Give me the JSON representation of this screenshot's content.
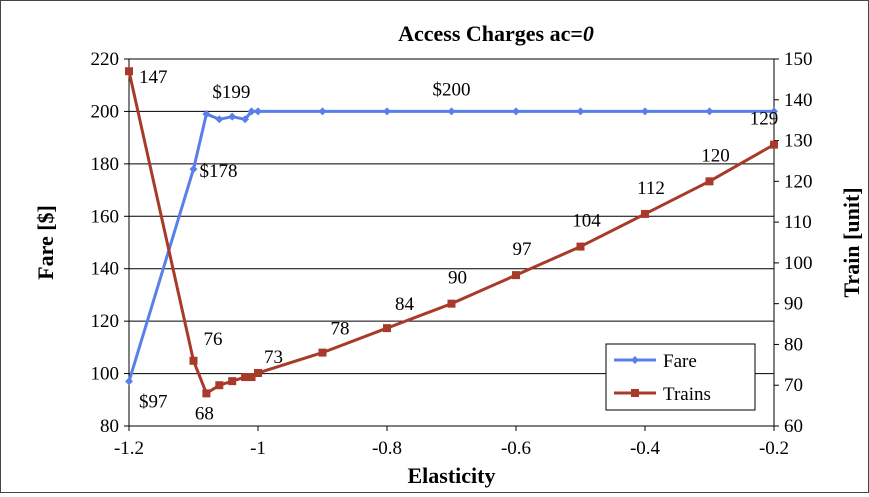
{
  "chart_data": {
    "type": "line",
    "title": "Access Charges ac=",
    "title_italic": "0",
    "xlabel": "Elasticity",
    "ylabel": "Fare [$]",
    "y2label": "Train [unit]",
    "xlim": [
      -1.2,
      -0.2
    ],
    "ylim": [
      80,
      220
    ],
    "y2lim": [
      60,
      150
    ],
    "x_ticks": [
      -1.2,
      -1,
      -0.8,
      -0.6,
      -0.4,
      -0.2
    ],
    "x_tick_labels": [
      "-1.2",
      "-1",
      "-0.8",
      "-0.6",
      "-0.4",
      "-0.2"
    ],
    "y_ticks": [
      80,
      100,
      120,
      140,
      160,
      180,
      200,
      220
    ],
    "y2_ticks": [
      60,
      70,
      80,
      90,
      100,
      110,
      120,
      130,
      140,
      150
    ],
    "grid": "horizontal",
    "legend_position": "bottom-right",
    "series": [
      {
        "name": "Fare",
        "axis": "left",
        "color": "#5b7fe8",
        "marker": "diamond",
        "x": [
          -1.2,
          -1.1,
          -1.08,
          -1.06,
          -1.04,
          -1.02,
          -1.01,
          -1.0,
          -0.9,
          -0.8,
          -0.7,
          -0.6,
          -0.5,
          -0.4,
          -0.3,
          -0.2
        ],
        "values": [
          97,
          178,
          199,
          197,
          198,
          197,
          200,
          200,
          200,
          200,
          200,
          200,
          200,
          200,
          200,
          200
        ]
      },
      {
        "name": "Trains",
        "axis": "right",
        "color": "#a83a2a",
        "marker": "square",
        "x": [
          -1.2,
          -1.1,
          -1.08,
          -1.06,
          -1.04,
          -1.02,
          -1.01,
          -1.0,
          -0.9,
          -0.8,
          -0.7,
          -0.6,
          -0.5,
          -0.4,
          -0.3,
          -0.2
        ],
        "values": [
          147,
          76,
          68,
          70,
          71,
          72,
          72,
          73,
          78,
          84,
          90,
          97,
          104,
          112,
          120,
          129
        ]
      }
    ],
    "annotations": [
      {
        "text": "$97",
        "series": "Fare",
        "x": -1.2,
        "value": 97
      },
      {
        "text": "$178",
        "series": "Fare",
        "x": -1.1,
        "value": 178
      },
      {
        "text": "$199",
        "series": "Fare",
        "x": -1.08,
        "value": 199
      },
      {
        "text": "$200",
        "series": "Fare",
        "x": -0.7,
        "value": 200
      },
      {
        "text": "147",
        "series": "Trains",
        "x": -1.2,
        "value": 147
      },
      {
        "text": "76",
        "series": "Trains",
        "x": -1.1,
        "value": 76
      },
      {
        "text": "68",
        "series": "Trains",
        "x": -1.08,
        "value": 68
      },
      {
        "text": "73",
        "series": "Trains",
        "x": -1.0,
        "value": 73
      },
      {
        "text": "78",
        "series": "Trains",
        "x": -0.9,
        "value": 78
      },
      {
        "text": "84",
        "series": "Trains",
        "x": -0.8,
        "value": 84
      },
      {
        "text": "90",
        "series": "Trains",
        "x": -0.7,
        "value": 90
      },
      {
        "text": "97",
        "series": "Trains",
        "x": -0.6,
        "value": 97
      },
      {
        "text": "104",
        "series": "Trains",
        "x": -0.5,
        "value": 104
      },
      {
        "text": "112",
        "series": "Trains",
        "x": -0.4,
        "value": 112
      },
      {
        "text": "120",
        "series": "Trains",
        "x": -0.3,
        "value": 120
      },
      {
        "text": "129",
        "series": "Trains",
        "x": -0.2,
        "value": 129
      }
    ]
  }
}
